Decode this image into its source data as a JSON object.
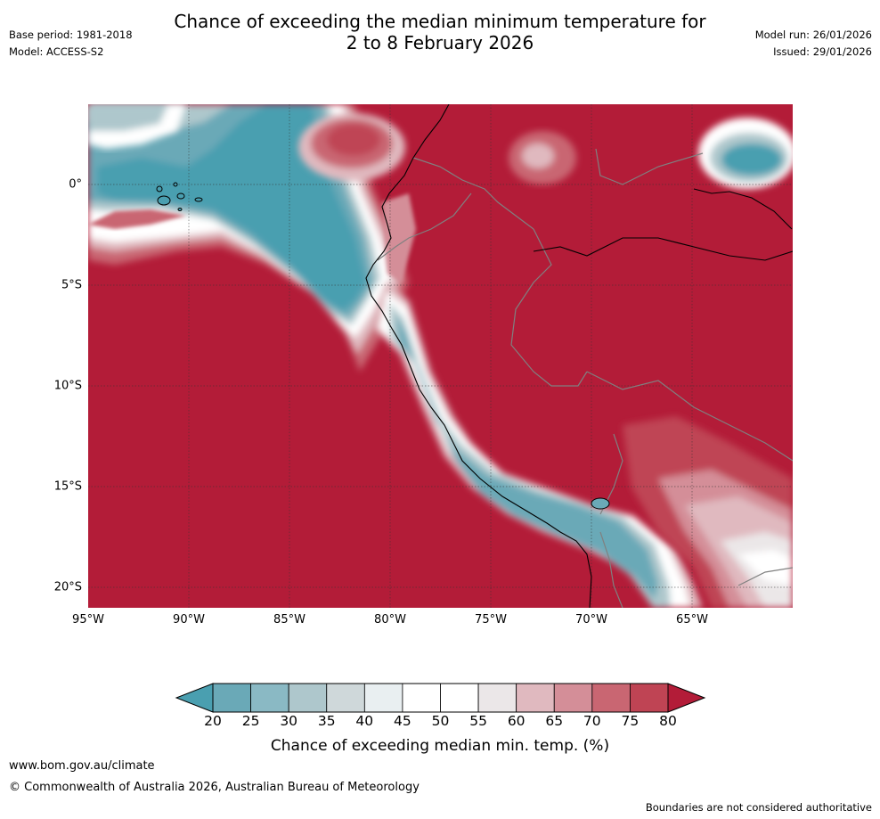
{
  "header": {
    "title_line1": "Chance of exceeding the median minimum temperature for",
    "title_line2": "2 to 8 February 2026",
    "base_period": "Base period: 1981-2018",
    "model": "Model: ACCESS-S2",
    "model_run": "Model run: 26/01/2026",
    "issued": "Issued: 29/01/2026"
  },
  "map": {
    "latitude_labels": [
      "0°",
      "5°S",
      "10°S",
      "15°S",
      "20°S"
    ],
    "longitude_labels": [
      "95°W",
      "90°W",
      "85°W",
      "80°W",
      "75°W",
      "70°W",
      "65°W"
    ],
    "colors": {
      "below_20": "#4a9fb0",
      "c20_25": "#6aa9b7",
      "c25_30": "#8ab9c4",
      "c30_35": "#aec7cc",
      "c35_40": "#cfd8da",
      "c40_45": "#e9eff1",
      "c45_55": "#ffffff",
      "c55_60": "#ebe7e8",
      "c60_65": "#e0b9bf",
      "c65_70": "#d48e98",
      "c70_75": "#c96672",
      "c75_80": "#bf4454",
      "above_80": "#b31c38",
      "land_border": "#808080",
      "coastline": "#000000"
    }
  },
  "colorbar": {
    "ticks": [
      "20",
      "25",
      "30",
      "35",
      "40",
      "45",
      "50",
      "55",
      "60",
      "65",
      "70",
      "75",
      "80"
    ],
    "title": "Chance of exceeding median min. temp. (%)",
    "bins": [
      "#6aa9b7",
      "#8ab9c4",
      "#aec7cc",
      "#cfd8da",
      "#e9eff1",
      "#ffffff",
      "#ffffff",
      "#ebe7e8",
      "#e0b9bf",
      "#d48e98",
      "#c96672",
      "#bf4454"
    ],
    "low_arrow_color": "#4a9fb0",
    "high_arrow_color": "#b31c38"
  },
  "footer": {
    "website": "www.bom.gov.au/climate",
    "copyright": "© Commonwealth of Australia 2026, Australian Bureau of Meteorology",
    "disclaimer": "Boundaries are not considered authoritative"
  }
}
